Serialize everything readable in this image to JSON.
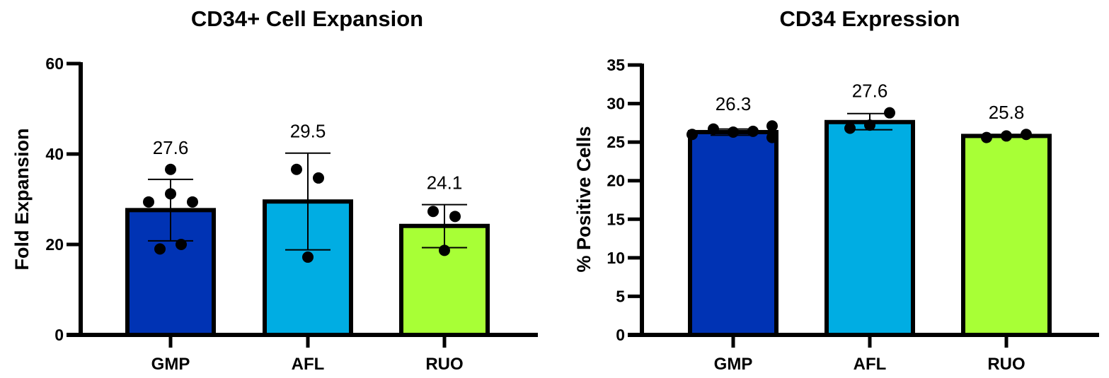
{
  "chart_data": [
    {
      "type": "bar",
      "title": "CD34+ Cell Expansion",
      "xlabel": "",
      "ylabel": "Fold Expansion",
      "ylim": [
        0,
        60
      ],
      "yticks": [
        0,
        20,
        40,
        60
      ],
      "categories": [
        "GMP",
        "AFL",
        "RUO"
      ],
      "values": [
        27.6,
        29.5,
        24.1
      ],
      "value_labels": [
        "27.6",
        "29.5",
        "24.1"
      ],
      "error_bars": [
        [
          20.8,
          34.4
        ],
        [
          18.8,
          40.2
        ],
        [
          19.3,
          28.8
        ]
      ],
      "points": [
        [
          29.4,
          36.6,
          31.2,
          29.4,
          19.0,
          20.0
        ],
        [
          36.6,
          34.7,
          17.2
        ],
        [
          27.3,
          26.2,
          18.7
        ]
      ],
      "colors": [
        "#0033b4",
        "#00ade3",
        "#a8ff36"
      ],
      "grid": false,
      "legend": "none"
    },
    {
      "type": "bar",
      "title": "CD34 Expression",
      "xlabel": "",
      "ylabel": "% Positive Cells",
      "ylim": [
        0,
        35
      ],
      "yticks": [
        0,
        5,
        10,
        15,
        20,
        25,
        30,
        35
      ],
      "categories": [
        "GMP",
        "AFL",
        "RUO"
      ],
      "values": [
        26.3,
        27.6,
        25.8
      ],
      "value_labels": [
        "26.3",
        "27.6",
        "25.8"
      ],
      "error_bars": [
        [
          25.9,
          26.7
        ],
        [
          26.6,
          28.7
        ],
        [
          25.7,
          26.0
        ]
      ],
      "points": [
        [
          26.0,
          26.7,
          26.3,
          26.4,
          27.1,
          25.6
        ],
        [
          26.8,
          28.8,
          27.2
        ],
        [
          25.6,
          26.0,
          25.8
        ]
      ],
      "colors": [
        "#0033b4",
        "#00ade3",
        "#a8ff36"
      ],
      "grid": false,
      "legend": "none"
    }
  ]
}
